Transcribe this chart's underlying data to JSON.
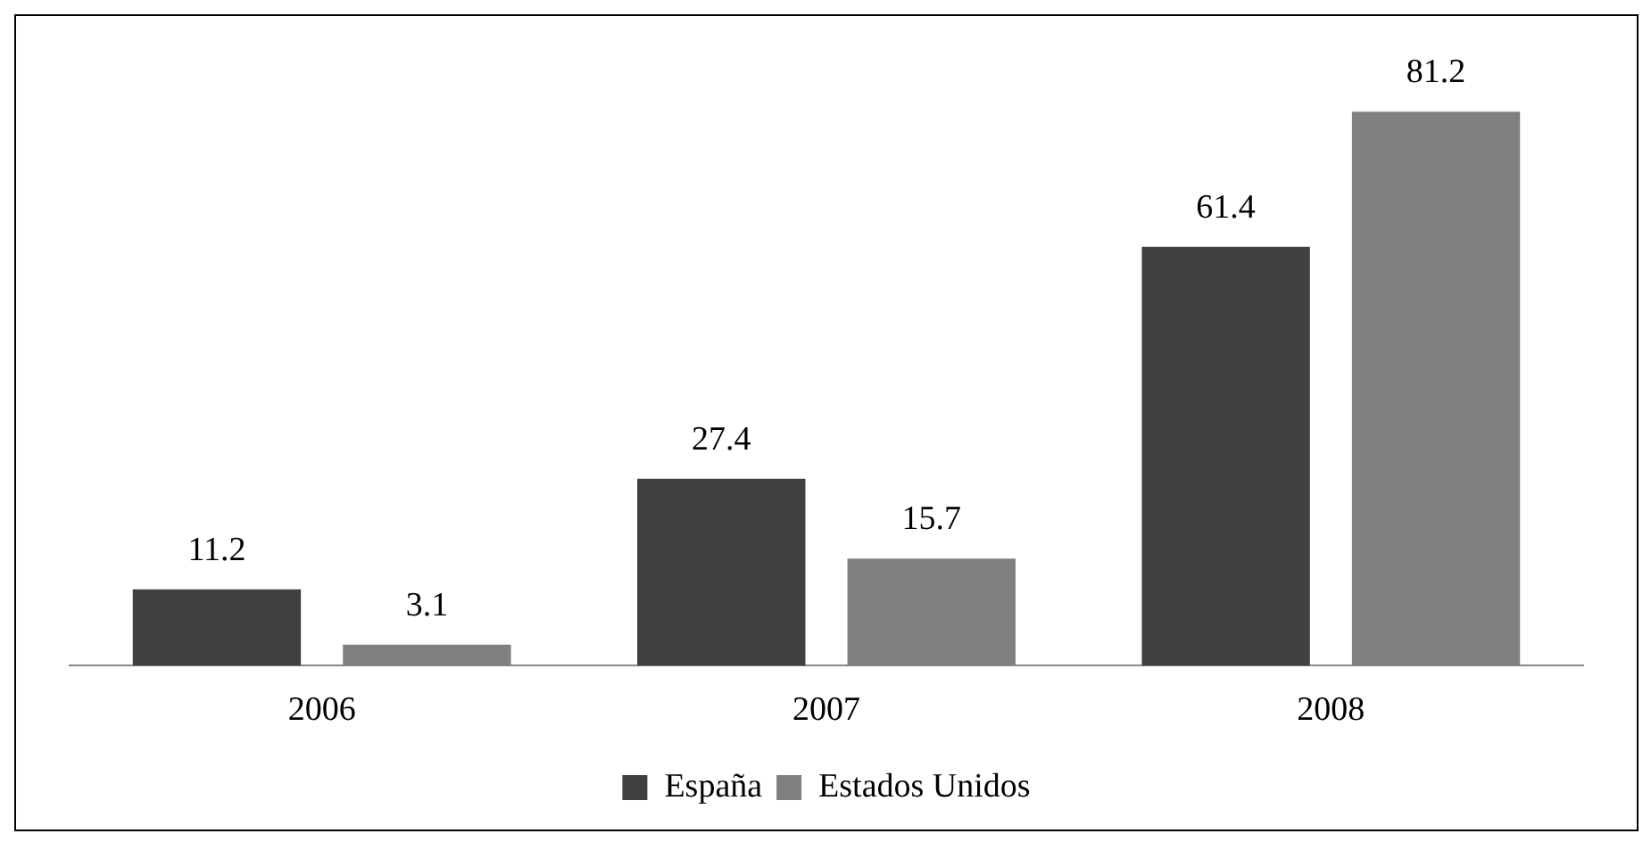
{
  "chart_data": {
    "type": "bar",
    "categories": [
      "2006",
      "2007",
      "2008"
    ],
    "series": [
      {
        "name": "España",
        "color": "#404040",
        "values": [
          11.2,
          27.4,
          61.4
        ]
      },
      {
        "name": "Estados Unidos",
        "color": "#808080",
        "values": [
          3.1,
          15.7,
          81.2
        ]
      }
    ],
    "data_labels": true,
    "legend": "bottom",
    "grid": false,
    "tick_labels": "x"
  }
}
